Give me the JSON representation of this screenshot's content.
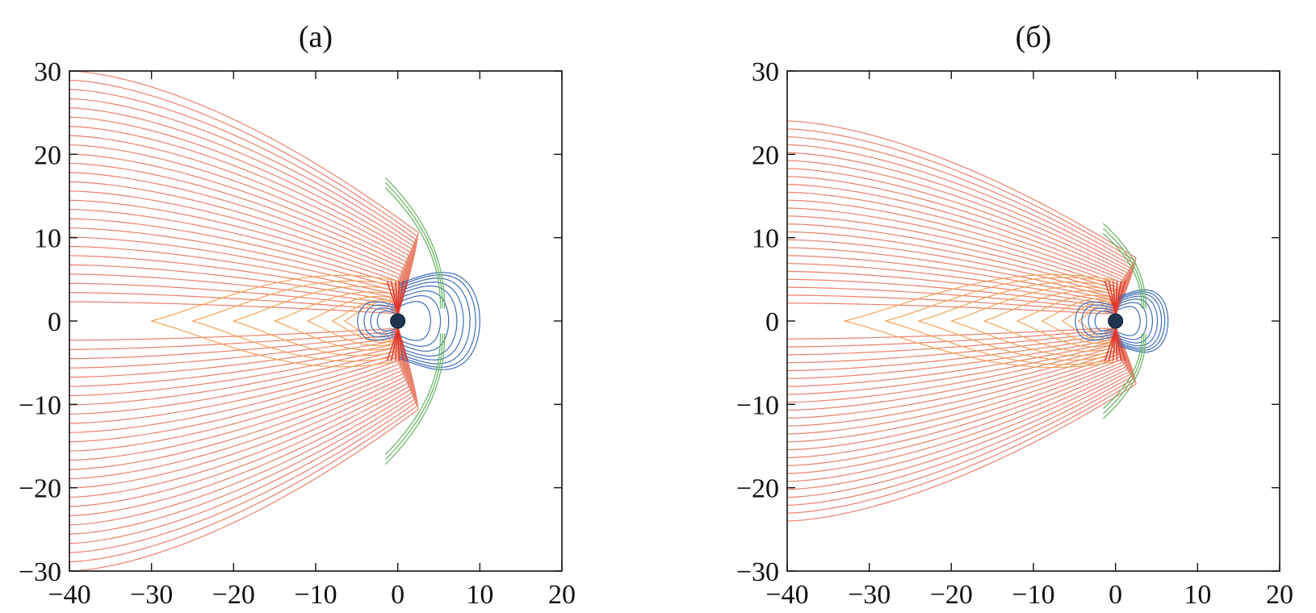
{
  "chart_data": [
    {
      "type": "line",
      "title": "(а)",
      "xlabel": "",
      "ylabel": "",
      "xlim": [
        -40,
        20
      ],
      "ylim": [
        -30,
        30
      ],
      "xticks": [
        -40,
        -30,
        -20,
        -10,
        0,
        10,
        20
      ],
      "yticks": [
        -30,
        -20,
        -10,
        0,
        10,
        20,
        30
      ],
      "xtick_labels": [
        "−40",
        "−30",
        "−20",
        "−10",
        "0",
        "10",
        "20"
      ],
      "ytick_labels": [
        "−30",
        "−20",
        "−10",
        "0",
        "10",
        "20",
        "30"
      ],
      "grid": false,
      "series": [
        {
          "kind": "open-tail-lobes",
          "color": "#e8806a",
          "y_left_max": 30,
          "x_left": -40,
          "x_merge": 0,
          "count": 26
        },
        {
          "kind": "closed-tail-loops",
          "color": "#f2a45a",
          "x_tips": [
            -30,
            -25,
            -20,
            -15,
            -11,
            -8,
            -6.5
          ],
          "count": 7
        },
        {
          "kind": "dayside-closed-loops",
          "color": "#3f6fba",
          "x_nose": [
            4.0,
            5.2,
            6.2,
            7.2,
            8.0,
            8.8,
            9.5,
            10.0
          ],
          "count": 8
        },
        {
          "kind": "cusp-open",
          "color": "#e0342a",
          "count": 6
        },
        {
          "kind": "magnetopause-flank",
          "color": "#62b35c",
          "x_nose": 5.2,
          "y_extent": 16
        }
      ],
      "planet": {
        "x": 0,
        "y": 0,
        "color": "#1e3552"
      }
    },
    {
      "type": "line",
      "title": "(б)",
      "xlabel": "",
      "ylabel": "",
      "xlim": [
        -40,
        20
      ],
      "ylim": [
        -30,
        30
      ],
      "xticks": [
        -40,
        -30,
        -20,
        -10,
        0,
        10,
        20
      ],
      "yticks": [
        -30,
        -20,
        -10,
        0,
        10,
        20,
        30
      ],
      "xtick_labels": [
        "−40",
        "−30",
        "−20",
        "−10",
        "0",
        "10",
        "20"
      ],
      "ytick_labels": [
        "−30",
        "−20",
        "−10",
        "0",
        "10",
        "20",
        "30"
      ],
      "grid": false,
      "series": [
        {
          "kind": "open-tail-lobes",
          "color": "#e8806a",
          "y_left_max": 24,
          "x_left": -40,
          "x_merge": 0,
          "count": 24
        },
        {
          "kind": "closed-tail-loops",
          "color": "#f2a45a",
          "x_tips": [
            -33,
            -28,
            -24,
            -20,
            -16,
            -12,
            -9,
            -6.5,
            -4.5
          ],
          "count": 9
        },
        {
          "kind": "dayside-closed-loops",
          "color": "#3f6fba",
          "x_nose": [
            3.0,
            3.8,
            4.5,
            5.1,
            5.6,
            6.0,
            6.4
          ],
          "count": 7
        },
        {
          "kind": "cusp-open",
          "color": "#e0342a",
          "count": 6
        },
        {
          "kind": "magnetopause-flank",
          "color": "#62b35c",
          "x_nose": 3.2,
          "y_extent": 10.5
        }
      ],
      "planet": {
        "x": 0,
        "y": 0,
        "color": "#1e3552"
      }
    }
  ]
}
